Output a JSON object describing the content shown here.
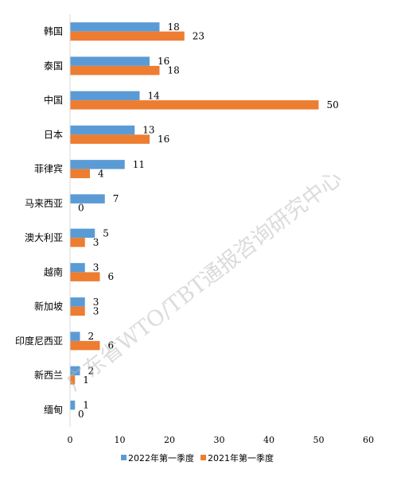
{
  "chart_data": {
    "type": "bar",
    "orientation": "horizontal",
    "categories": [
      "韩国",
      "泰国",
      "中国",
      "日本",
      "菲律宾",
      "马来西亚",
      "澳大利亚",
      "越南",
      "新加坡",
      "印度尼西亚",
      "新西兰",
      "缅甸"
    ],
    "series": [
      {
        "name": "2022年第一季度",
        "color": "#5b9bd5",
        "values": [
          18,
          16,
          14,
          13,
          11,
          7,
          5,
          3,
          3,
          2,
          2,
          1
        ]
      },
      {
        "name": "2021年第一季度",
        "color": "#ed7d31",
        "values": [
          23,
          18,
          50,
          16,
          4,
          0,
          3,
          6,
          3,
          6,
          1,
          0
        ]
      }
    ],
    "xlim": [
      0,
      60
    ],
    "xticks": [
      0,
      10,
      20,
      30,
      40,
      50,
      60
    ],
    "grid": false,
    "legend_position": "bottom",
    "data_labels": true
  },
  "watermark": "广东省WTO/TBT通报咨询研究中心"
}
